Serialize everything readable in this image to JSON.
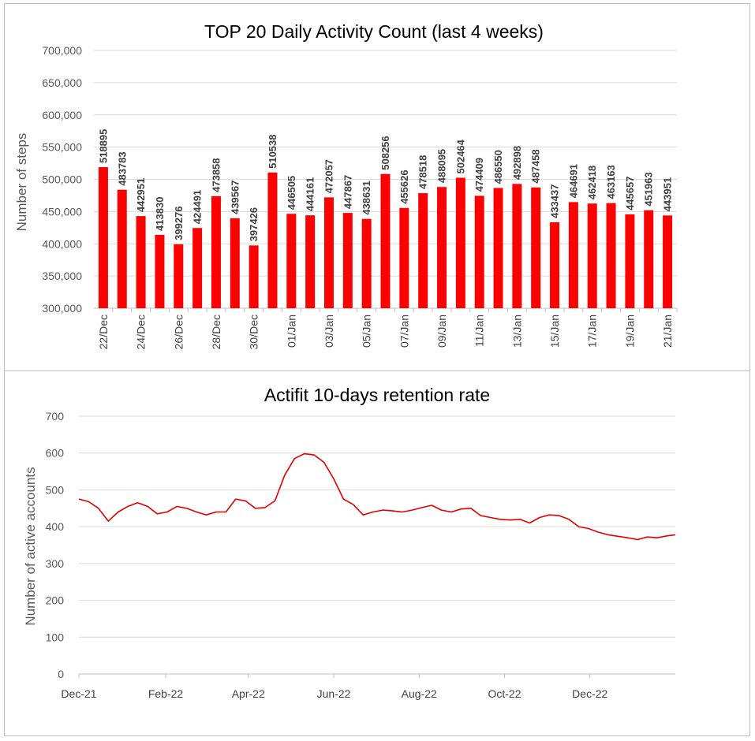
{
  "charts": {
    "bar_color": "#ff0000",
    "line_color": "#e00000",
    "grid_color": "#d9d9d9"
  },
  "chart_data": [
    {
      "type": "bar",
      "title": "TOP 20 Daily Activity Count (last 4 weeks)",
      "ylabel": "Number of steps",
      "xlabel": "",
      "ylim": [
        300000,
        700000
      ],
      "yticks": [
        "300,000",
        "350,000",
        "400,000",
        "450,000",
        "500,000",
        "550,000",
        "600,000",
        "650,000",
        "700,000"
      ],
      "grid": true,
      "categories": [
        "22/Dec",
        "23/Dec",
        "24/Dec",
        "25/Dec",
        "26/Dec",
        "27/Dec",
        "28/Dec",
        "29/Dec",
        "30/Dec",
        "31/Dec",
        "01/Jan",
        "02/Jan",
        "03/Jan",
        "04/Jan",
        "05/Jan",
        "06/Jan",
        "07/Jan",
        "08/Jan",
        "09/Jan",
        "10/Jan",
        "11/Jan",
        "12/Jan",
        "13/Jan",
        "14/Jan",
        "15/Jan",
        "16/Jan",
        "17/Jan",
        "18/Jan",
        "19/Jan",
        "20/Jan",
        "21/Jan"
      ],
      "shown_tick_labels": [
        "22/Dec",
        "24/Dec",
        "26/Dec",
        "28/Dec",
        "30/Dec",
        "01/Jan",
        "03/Jan",
        "05/Jan",
        "07/Jan",
        "09/Jan",
        "11/Jan",
        "13/Jan",
        "15/Jan",
        "17/Jan",
        "19/Jan",
        "21/Jan"
      ],
      "values": [
        518895,
        483783,
        442951,
        413830,
        399276,
        424491,
        473858,
        439567,
        397426,
        510538,
        446505,
        444161,
        472057,
        447867,
        438631,
        508256,
        455626,
        478518,
        488095,
        502464,
        474409,
        486550,
        492898,
        487458,
        433437,
        464691,
        462418,
        463163,
        445657,
        451963,
        443951
      ]
    },
    {
      "type": "line",
      "title": "Actifit 10-days retention rate",
      "ylabel": "Number of active accounts",
      "xlabel": "",
      "ylim": [
        0,
        700
      ],
      "yticks": [
        "0",
        "100",
        "200",
        "300",
        "400",
        "500",
        "600",
        "700"
      ],
      "grid": true,
      "xticks": [
        "Dec-21",
        "Feb-22",
        "Apr-22",
        "Jun-22",
        "Aug-22",
        "Oct-22",
        "Dec-22"
      ],
      "x_range": [
        "2021-12-01",
        "2023-01-31"
      ],
      "x": [
        "2021-12-01",
        "2021-12-08",
        "2021-12-15",
        "2021-12-22",
        "2021-12-29",
        "2022-01-05",
        "2022-01-12",
        "2022-01-19",
        "2022-01-26",
        "2022-02-02",
        "2022-02-09",
        "2022-02-16",
        "2022-02-23",
        "2022-03-02",
        "2022-03-09",
        "2022-03-16",
        "2022-03-23",
        "2022-03-30",
        "2022-04-06",
        "2022-04-13",
        "2022-04-20",
        "2022-04-27",
        "2022-05-04",
        "2022-05-11",
        "2022-05-18",
        "2022-05-25",
        "2022-06-01",
        "2022-06-08",
        "2022-06-15",
        "2022-06-22",
        "2022-06-29",
        "2022-07-06",
        "2022-07-13",
        "2022-07-20",
        "2022-07-27",
        "2022-08-03",
        "2022-08-10",
        "2022-08-17",
        "2022-08-24",
        "2022-08-31",
        "2022-09-07",
        "2022-09-14",
        "2022-09-21",
        "2022-09-28",
        "2022-10-05",
        "2022-10-12",
        "2022-10-19",
        "2022-10-26",
        "2022-11-02",
        "2022-11-09",
        "2022-11-16",
        "2022-11-23",
        "2022-11-30",
        "2022-12-07",
        "2022-12-14",
        "2022-12-21",
        "2022-12-28",
        "2023-01-04",
        "2023-01-11",
        "2023-01-18",
        "2023-01-25",
        "2023-01-31"
      ],
      "series": [
        {
          "values": [
            475,
            468,
            450,
            415,
            440,
            455,
            465,
            455,
            435,
            440,
            455,
            450,
            440,
            432,
            440,
            440,
            475,
            470,
            450,
            452,
            470,
            540,
            585,
            598,
            595,
            575,
            530,
            475,
            460,
            432,
            440,
            445,
            443,
            440,
            445,
            452,
            458,
            445,
            440,
            448,
            450,
            430,
            425,
            420,
            418,
            420,
            410,
            425,
            432,
            430,
            420,
            400,
            395,
            385,
            378,
            374,
            370,
            365,
            372,
            370,
            375,
            378
          ]
        }
      ]
    }
  ]
}
